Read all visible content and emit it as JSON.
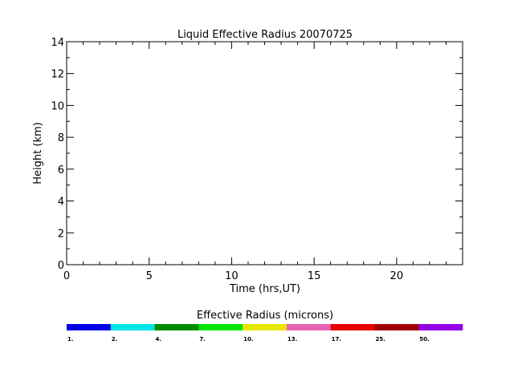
{
  "chart_data": {
    "type": "heatmap",
    "title": "Liquid Effective Radius 20070725",
    "xlabel": "Time (hrs,UT)",
    "ylabel": "Height (km)",
    "xlim": [
      0,
      24
    ],
    "ylim": [
      0,
      14
    ],
    "x_ticks": [
      0,
      5,
      10,
      15,
      20
    ],
    "y_ticks": [
      0,
      2,
      4,
      6,
      8,
      10,
      12,
      14
    ],
    "x_minor_step": 1,
    "y_minor_step": 1,
    "grid": false,
    "series": [],
    "colorbar": {
      "title": "Effective Radius (microns)",
      "tick_labels": [
        "1.",
        "2.",
        "4.",
        "7.",
        "10.",
        "13.",
        "17.",
        "25.",
        "50."
      ],
      "colors": [
        "#0000e6",
        "#00e6e6",
        "#008c00",
        "#00e600",
        "#e6e600",
        "#e664b4",
        "#e60000",
        "#a00000",
        "#9600e6"
      ]
    }
  }
}
